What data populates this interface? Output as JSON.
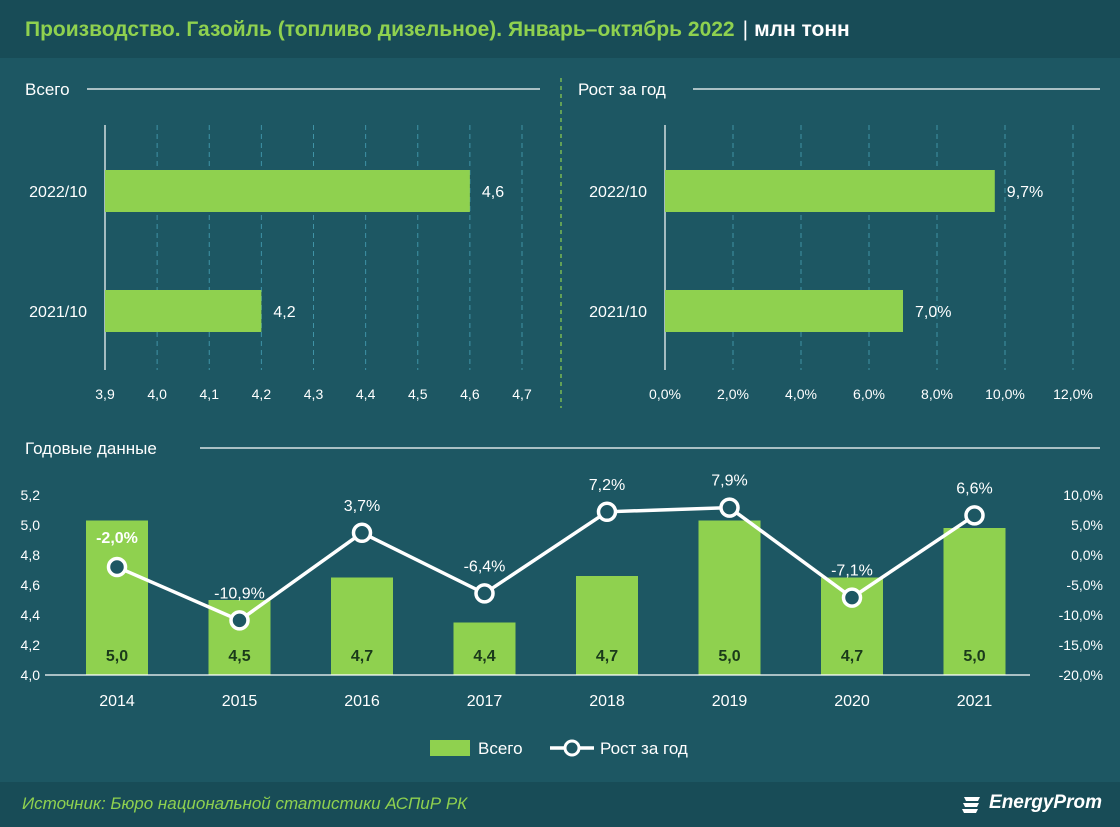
{
  "header": {
    "title": "Производство. Газойль (топливо дизельное). Январь–октябрь 2022",
    "units": "млн тонн"
  },
  "footer": {
    "source": "Источник: Бюро национальной статистики АСПиР РК",
    "brand": "EnergyProm"
  },
  "colors": {
    "bar": "#8fd14f",
    "line": "#ffffff",
    "background": "#1d5763",
    "title": "#8fd14f"
  },
  "chart_data": [
    {
      "type": "bar",
      "orientation": "horizontal",
      "title": "Всего",
      "categories": [
        "2022/10",
        "2021/10"
      ],
      "values": [
        4.6,
        4.2
      ],
      "value_labels": [
        "4,6",
        "4,2"
      ],
      "xlim": [
        3.9,
        4.7
      ],
      "x_ticks": [
        "3,9",
        "4,0",
        "4,1",
        "4,2",
        "4,3",
        "4,4",
        "4,5",
        "4,6",
        "4,7"
      ],
      "grid": true
    },
    {
      "type": "bar",
      "orientation": "horizontal",
      "title": "Рост за год",
      "categories": [
        "2022/10",
        "2021/10"
      ],
      "values": [
        9.7,
        7.0
      ],
      "value_labels": [
        "9,7%",
        "7,0%"
      ],
      "xlim": [
        0,
        12
      ],
      "x_ticks": [
        "0,0%",
        "2,0%",
        "4,0%",
        "6,0%",
        "8,0%",
        "10,0%",
        "12,0%"
      ],
      "grid": true
    },
    {
      "type": "bar+line",
      "title": "Годовые данные",
      "categories": [
        "2014",
        "2015",
        "2016",
        "2017",
        "2018",
        "2019",
        "2020",
        "2021"
      ],
      "series": [
        {
          "name": "Всего",
          "type": "bar",
          "axis": "left",
          "values": [
            5.03,
            4.5,
            4.65,
            4.35,
            4.66,
            5.03,
            4.65,
            4.98
          ],
          "value_labels": [
            "5,0",
            "4,5",
            "4,7",
            "4,4",
            "4,7",
            "5,0",
            "4,7",
            "5,0"
          ]
        },
        {
          "name": "Рост за год",
          "type": "line",
          "axis": "right",
          "values": [
            -2.0,
            -10.9,
            3.7,
            -6.4,
            7.2,
            7.9,
            -7.1,
            6.6
          ],
          "value_labels": [
            "-2,0%",
            "-10,9%",
            "3,7%",
            "-6,4%",
            "7,2%",
            "7,9%",
            "-7,1%",
            "6,6%"
          ]
        }
      ],
      "ylim_left": [
        4.0,
        5.2
      ],
      "y_ticks_left": [
        "4,0",
        "4,2",
        "4,4",
        "4,6",
        "4,8",
        "5,0",
        "5,2"
      ],
      "ylim_right": [
        -20,
        10
      ],
      "y_ticks_right": [
        "-20,0%",
        "-15,0%",
        "-10,0%",
        "-5,0%",
        "0,0%",
        "5,0%",
        "10,0%"
      ],
      "legend": [
        "Всего",
        "Рост за год"
      ],
      "legend_position": "bottom",
      "grid": false
    }
  ]
}
